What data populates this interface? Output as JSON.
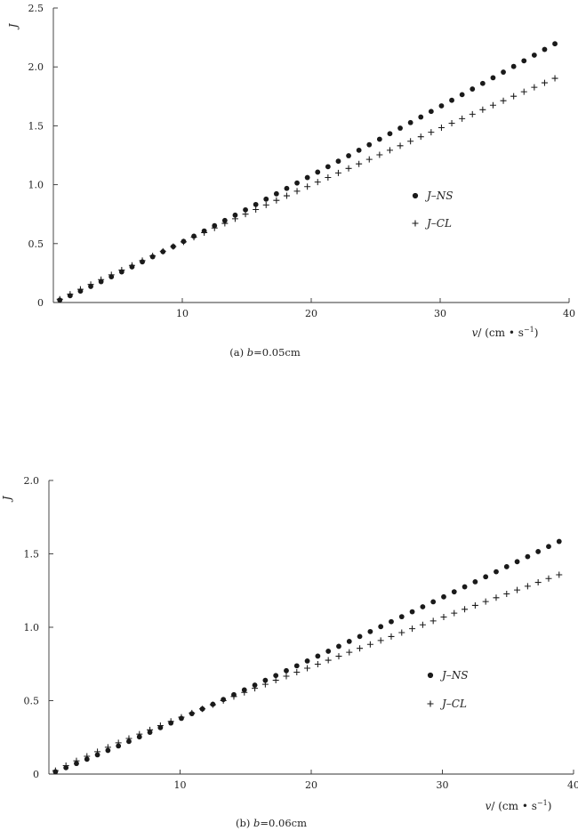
{
  "figure": {
    "panels": [
      {
        "caption": {
          "prefix": "(a) ",
          "var": "b",
          "rest": "=0.05cm"
        },
        "ylabel": "J",
        "xlabel": {
          "var": "v",
          "unit": "/ (cm • s",
          "sup": "−1",
          "close": ")"
        },
        "legend": [
          "J–NS",
          "J–CL"
        ]
      },
      {
        "caption": {
          "prefix": "(b) ",
          "var": "b",
          "rest": "=0.06cm"
        },
        "ylabel": "J",
        "xlabel": {
          "var": "v",
          "unit": "/ (cm • s",
          "sup": "−1",
          "close": ")"
        },
        "legend": [
          "J–NS",
          "J–CL"
        ]
      }
    ]
  },
  "chart_data": [
    {
      "type": "scatter",
      "xlabel": "v/ (cm • s−1)",
      "ylabel": "J",
      "xlim": [
        0,
        40
      ],
      "ylim": [
        0,
        2.5
      ],
      "xticks": [
        10,
        20,
        30,
        40
      ],
      "xtick_labels": [
        "10",
        "20",
        "30",
        "40"
      ],
      "yticks": [
        0,
        0.5,
        1.0,
        1.5,
        2.0,
        2.5
      ],
      "ytick_labels": [
        "0",
        "0.5",
        "1.0",
        "1.5",
        "2.0",
        "2.5"
      ],
      "grid": false,
      "legend_position": "right",
      "x_range": [
        0.5,
        39.3
      ],
      "x_step": 0.8,
      "series": [
        {
          "name": "J–NS",
          "marker": "dot",
          "model": "power",
          "a": 0.0437,
          "p": 1.07
        },
        {
          "name": "J–CL",
          "marker": "plus",
          "model": "power",
          "a": 0.0546,
          "p": 0.97
        }
      ]
    },
    {
      "type": "scatter",
      "xlabel": "v/ (cm • s−1)",
      "ylabel": "J",
      "xlim": [
        0,
        40
      ],
      "ylim": [
        0,
        2.0
      ],
      "xticks": [
        10,
        20,
        30,
        40
      ],
      "xtick_labels": [
        "10",
        "20",
        "30",
        "40"
      ],
      "yticks": [
        0,
        0.5,
        1.0,
        1.5,
        2.0
      ],
      "ytick_labels": [
        "0",
        "0.5",
        "1.0",
        "1.5",
        "2.0"
      ],
      "grid": false,
      "legend_position": "right",
      "x_range": [
        0.5,
        39.3
      ],
      "x_step": 0.8,
      "series": [
        {
          "name": "J–NS",
          "marker": "dot",
          "model": "power",
          "a": 0.0327,
          "p": 1.06
        },
        {
          "name": "J–CL",
          "marker": "plus",
          "model": "power",
          "a": 0.0451,
          "p": 0.93
        }
      ]
    }
  ]
}
